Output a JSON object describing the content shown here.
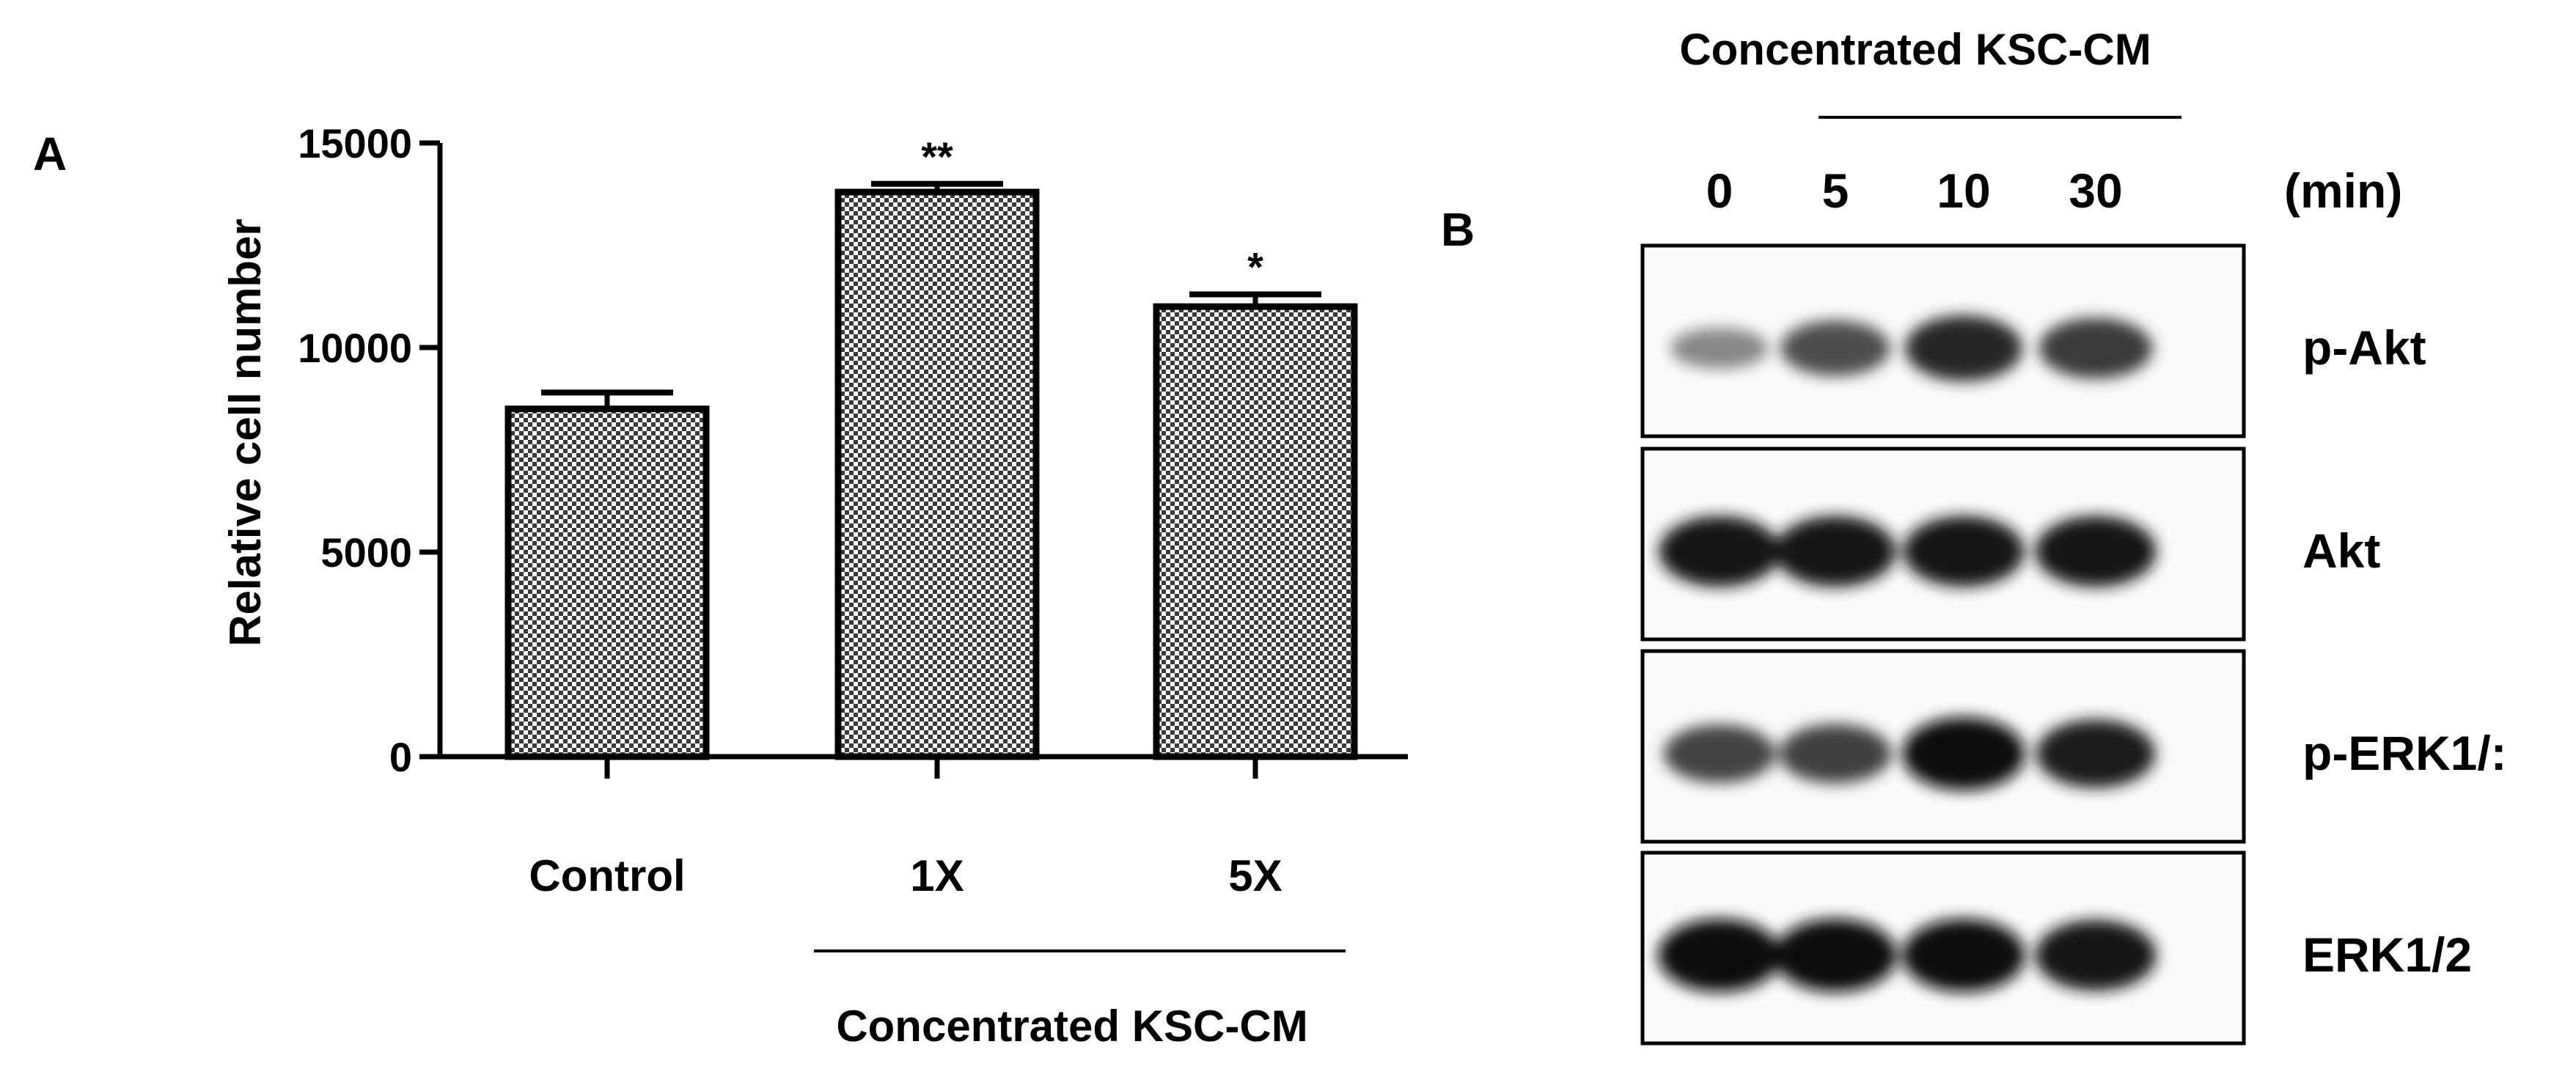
{
  "panel_a": {
    "label": "A",
    "group_label": "Concentrated KSC-CM"
  },
  "panel_b": {
    "label": "B",
    "group_label": "Concentrated KSC-CM",
    "unit_label": "(min)",
    "lanes": [
      "0",
      "5",
      "10",
      "30"
    ],
    "rows": [
      {
        "label": "p-Akt",
        "intensity": [
          0.35,
          0.65,
          0.85,
          0.75
        ]
      },
      {
        "label": "Akt",
        "intensity": [
          0.95,
          0.95,
          0.95,
          0.95
        ]
      },
      {
        "label": "p-ERK1/:",
        "intensity": [
          0.7,
          0.72,
          1.0,
          0.9
        ]
      },
      {
        "label": "ERK1/2",
        "intensity": [
          1.0,
          1.0,
          1.0,
          0.95
        ]
      }
    ]
  },
  "chart_data": {
    "type": "bar",
    "title": "",
    "xlabel": "",
    "ylabel": "Relative cell number",
    "categories": [
      "Control",
      "1X",
      "5X"
    ],
    "values": [
      8500,
      13800,
      11000
    ],
    "errors": [
      400,
      200,
      300
    ],
    "significance": [
      "",
      "**",
      "*"
    ],
    "ylim": [
      0,
      15000
    ],
    "yticks": [
      0,
      5000,
      10000,
      15000
    ],
    "grid": false,
    "fill_pattern": "checkerboard"
  }
}
